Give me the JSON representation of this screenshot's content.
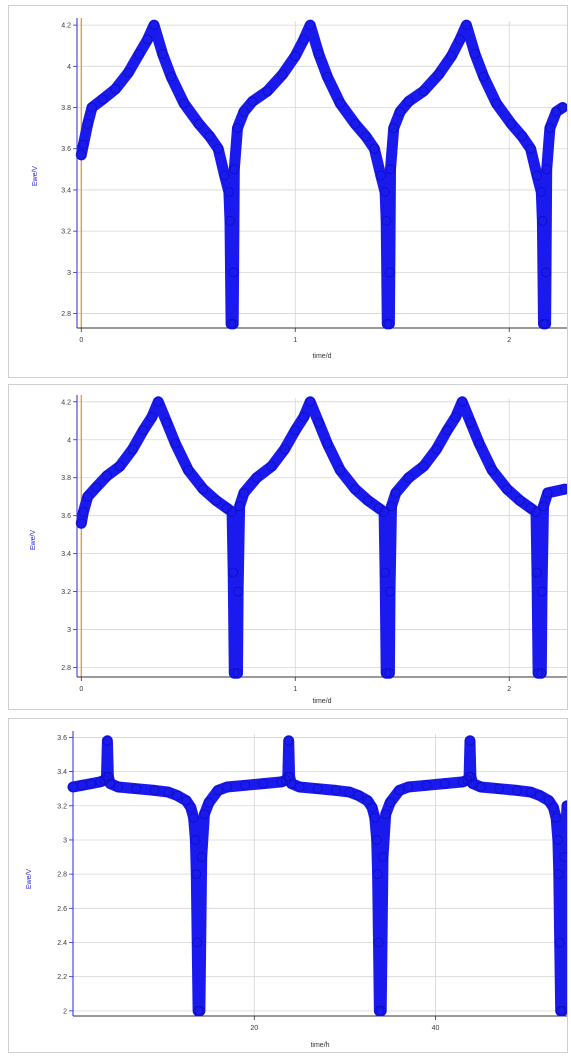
{
  "chart_data": [
    {
      "type": "line",
      "xlabel": "time/d",
      "ylabel": "Ewe/V",
      "xlim": [
        -0.02,
        2.27
      ],
      "ylim": [
        2.73,
        4.22
      ],
      "x_ticks": [
        0,
        1,
        2
      ],
      "x_tick_labels": [
        "0",
        "1",
        "2"
      ],
      "y_ticks": [
        2.8,
        3.0,
        3.2,
        3.4,
        3.6,
        3.8,
        4.0,
        4.2
      ],
      "y_tick_labels": [
        "2.8",
        "3",
        "3.2",
        "3.4",
        "3.6",
        "3.8",
        "4",
        "4.2"
      ],
      "grid": true,
      "vline_x": 0,
      "line_color": "#1a1aee",
      "vline_color": "#e8911a",
      "series": [
        {
          "points": [
            [
              0.0,
              3.57
            ],
            [
              0.01,
              3.62
            ],
            [
              0.03,
              3.72
            ],
            [
              0.05,
              3.8
            ],
            [
              0.1,
              3.84
            ],
            [
              0.16,
              3.89
            ],
            [
              0.22,
              3.97
            ],
            [
              0.27,
              4.06
            ],
            [
              0.31,
              4.13
            ],
            [
              0.34,
              4.2
            ],
            [
              0.38,
              4.06
            ],
            [
              0.42,
              3.95
            ],
            [
              0.48,
              3.82
            ],
            [
              0.55,
              3.72
            ],
            [
              0.6,
              3.66
            ],
            [
              0.64,
              3.6
            ],
            [
              0.67,
              3.47
            ],
            [
              0.69,
              3.39
            ],
            [
              0.695,
              3.25
            ],
            [
              0.7,
              2.75
            ],
            [
              0.71,
              2.75
            ],
            [
              0.712,
              3.0
            ],
            [
              0.715,
              3.5
            ],
            [
              0.73,
              3.7
            ],
            [
              0.76,
              3.78
            ],
            [
              0.8,
              3.83
            ],
            [
              0.87,
              3.88
            ],
            [
              0.94,
              3.96
            ],
            [
              1.0,
              4.05
            ],
            [
              1.04,
              4.13
            ],
            [
              1.07,
              4.2
            ],
            [
              1.11,
              4.06
            ],
            [
              1.15,
              3.95
            ],
            [
              1.21,
              3.82
            ],
            [
              1.28,
              3.72
            ],
            [
              1.33,
              3.66
            ],
            [
              1.37,
              3.6
            ],
            [
              1.4,
              3.47
            ],
            [
              1.42,
              3.39
            ],
            [
              1.425,
              3.25
            ],
            [
              1.43,
              2.75
            ],
            [
              1.44,
              2.75
            ],
            [
              1.442,
              3.0
            ],
            [
              1.445,
              3.5
            ],
            [
              1.46,
              3.7
            ],
            [
              1.49,
              3.78
            ],
            [
              1.53,
              3.83
            ],
            [
              1.6,
              3.88
            ],
            [
              1.67,
              3.96
            ],
            [
              1.73,
              4.05
            ],
            [
              1.77,
              4.13
            ],
            [
              1.8,
              4.2
            ],
            [
              1.84,
              4.06
            ],
            [
              1.88,
              3.95
            ],
            [
              1.94,
              3.82
            ],
            [
              2.01,
              3.72
            ],
            [
              2.06,
              3.66
            ],
            [
              2.1,
              3.6
            ],
            [
              2.13,
              3.47
            ],
            [
              2.15,
              3.39
            ],
            [
              2.155,
              3.25
            ],
            [
              2.16,
              2.75
            ],
            [
              2.17,
              2.75
            ],
            [
              2.172,
              3.0
            ],
            [
              2.175,
              3.5
            ],
            [
              2.19,
              3.7
            ],
            [
              2.22,
              3.78
            ],
            [
              2.25,
              3.8
            ]
          ]
        }
      ]
    },
    {
      "type": "line",
      "xlabel": "time/d",
      "ylabel": "Ewe/V",
      "xlim": [
        -0.02,
        2.27
      ],
      "ylim": [
        2.75,
        4.22
      ],
      "x_ticks": [
        0,
        1,
        2
      ],
      "x_tick_labels": [
        "0",
        "1",
        "2"
      ],
      "y_ticks": [
        2.8,
        3.0,
        3.2,
        3.4,
        3.6,
        3.8,
        4.0,
        4.2
      ],
      "y_tick_labels": [
        "2.8",
        "3",
        "3.2",
        "3.4",
        "3.6",
        "3.8",
        "4",
        "4.2"
      ],
      "grid": true,
      "vline_x": 0,
      "line_color": "#1a1aee",
      "vline_color": "#e8911a",
      "series": [
        {
          "points": [
            [
              0.0,
              3.56
            ],
            [
              0.01,
              3.62
            ],
            [
              0.03,
              3.7
            ],
            [
              0.07,
              3.75
            ],
            [
              0.12,
              3.81
            ],
            [
              0.18,
              3.86
            ],
            [
              0.24,
              3.95
            ],
            [
              0.29,
              4.05
            ],
            [
              0.33,
              4.12
            ],
            [
              0.36,
              4.2
            ],
            [
              0.4,
              4.09
            ],
            [
              0.44,
              3.98
            ],
            [
              0.5,
              3.84
            ],
            [
              0.57,
              3.74
            ],
            [
              0.63,
              3.68
            ],
            [
              0.68,
              3.64
            ],
            [
              0.705,
              3.62
            ],
            [
              0.71,
              3.3
            ],
            [
              0.715,
              2.77
            ],
            [
              0.73,
              2.77
            ],
            [
              0.733,
              3.2
            ],
            [
              0.74,
              3.65
            ],
            [
              0.76,
              3.72
            ],
            [
              0.82,
              3.8
            ],
            [
              0.89,
              3.86
            ],
            [
              0.95,
              3.95
            ],
            [
              1.0,
              4.05
            ],
            [
              1.04,
              4.12
            ],
            [
              1.07,
              4.2
            ],
            [
              1.11,
              4.09
            ],
            [
              1.15,
              3.98
            ],
            [
              1.21,
              3.84
            ],
            [
              1.28,
              3.74
            ],
            [
              1.34,
              3.68
            ],
            [
              1.39,
              3.64
            ],
            [
              1.415,
              3.62
            ],
            [
              1.42,
              3.3
            ],
            [
              1.425,
              2.77
            ],
            [
              1.44,
              2.77
            ],
            [
              1.443,
              3.2
            ],
            [
              1.45,
              3.65
            ],
            [
              1.47,
              3.72
            ],
            [
              1.53,
              3.8
            ],
            [
              1.6,
              3.86
            ],
            [
              1.66,
              3.95
            ],
            [
              1.71,
              4.05
            ],
            [
              1.75,
              4.12
            ],
            [
              1.78,
              4.2
            ],
            [
              1.82,
              4.09
            ],
            [
              1.86,
              3.98
            ],
            [
              1.92,
              3.84
            ],
            [
              1.99,
              3.74
            ],
            [
              2.05,
              3.68
            ],
            [
              2.1,
              3.64
            ],
            [
              2.125,
              3.62
            ],
            [
              2.13,
              3.3
            ],
            [
              2.135,
              2.77
            ],
            [
              2.15,
              2.77
            ],
            [
              2.153,
              3.2
            ],
            [
              2.16,
              3.65
            ],
            [
              2.18,
              3.72
            ],
            [
              2.26,
              3.74
            ]
          ]
        }
      ]
    },
    {
      "type": "line",
      "xlabel": "time/h",
      "ylabel": "Ewe/V",
      "xlim": [
        0,
        54.5
      ],
      "ylim": [
        1.97,
        3.62
      ],
      "x_ticks": [
        20,
        40
      ],
      "x_tick_labels": [
        "20",
        "40"
      ],
      "y_ticks": [
        2.0,
        2.2,
        2.4,
        2.6,
        2.8,
        3.0,
        3.2,
        3.4,
        3.6
      ],
      "y_tick_labels": [
        "2",
        "2.2",
        "2.4",
        "2.6",
        "2.8",
        "3",
        "3.2",
        "3.4",
        "3.6"
      ],
      "grid": true,
      "line_color": "#1a1aee",
      "series": [
        {
          "points": [
            [
              0.0,
              3.31
            ],
            [
              1.0,
              3.32
            ],
            [
              2.0,
              3.33
            ],
            [
              3.0,
              3.34
            ],
            [
              3.5,
              3.35
            ],
            [
              3.7,
              3.37
            ],
            [
              3.8,
              3.58
            ],
            [
              3.9,
              3.37
            ],
            [
              4.1,
              3.33
            ],
            [
              5.0,
              3.31
            ],
            [
              7.0,
              3.3
            ],
            [
              9.0,
              3.29
            ],
            [
              10.5,
              3.28
            ],
            [
              11.5,
              3.26
            ],
            [
              12.5,
              3.23
            ],
            [
              13.0,
              3.19
            ],
            [
              13.3,
              3.13
            ],
            [
              13.5,
              3.0
            ],
            [
              13.6,
              2.8
            ],
            [
              13.7,
              2.4
            ],
            [
              13.8,
              2.0
            ],
            [
              14.0,
              2.0
            ],
            [
              14.2,
              2.9
            ],
            [
              14.5,
              3.15
            ],
            [
              15.0,
              3.22
            ],
            [
              16.0,
              3.29
            ],
            [
              17.0,
              3.31
            ],
            [
              19.0,
              3.32
            ],
            [
              21.0,
              3.33
            ],
            [
              23.0,
              3.34
            ],
            [
              23.5,
              3.35
            ],
            [
              23.7,
              3.37
            ],
            [
              23.8,
              3.58
            ],
            [
              23.9,
              3.37
            ],
            [
              24.1,
              3.33
            ],
            [
              25.0,
              3.31
            ],
            [
              27.0,
              3.3
            ],
            [
              29.0,
              3.29
            ],
            [
              30.5,
              3.28
            ],
            [
              31.5,
              3.26
            ],
            [
              32.5,
              3.23
            ],
            [
              33.0,
              3.19
            ],
            [
              33.3,
              3.13
            ],
            [
              33.5,
              3.0
            ],
            [
              33.6,
              2.8
            ],
            [
              33.7,
              2.4
            ],
            [
              33.8,
              2.0
            ],
            [
              34.0,
              2.0
            ],
            [
              34.2,
              2.9
            ],
            [
              34.5,
              3.15
            ],
            [
              35.0,
              3.22
            ],
            [
              36.0,
              3.29
            ],
            [
              37.0,
              3.31
            ],
            [
              39.0,
              3.32
            ],
            [
              41.0,
              3.33
            ],
            [
              43.0,
              3.34
            ],
            [
              43.5,
              3.35
            ],
            [
              43.7,
              3.37
            ],
            [
              43.8,
              3.58
            ],
            [
              43.9,
              3.37
            ],
            [
              44.1,
              3.33
            ],
            [
              45.0,
              3.31
            ],
            [
              47.0,
              3.3
            ],
            [
              49.0,
              3.29
            ],
            [
              50.5,
              3.28
            ],
            [
              51.5,
              3.26
            ],
            [
              52.5,
              3.23
            ],
            [
              53.0,
              3.19
            ],
            [
              53.3,
              3.13
            ],
            [
              53.5,
              3.0
            ],
            [
              53.6,
              2.8
            ],
            [
              53.7,
              2.4
            ],
            [
              53.8,
              2.0
            ],
            [
              54.0,
              2.0
            ],
            [
              54.2,
              2.9
            ],
            [
              54.5,
              3.2
            ]
          ]
        }
      ]
    }
  ]
}
